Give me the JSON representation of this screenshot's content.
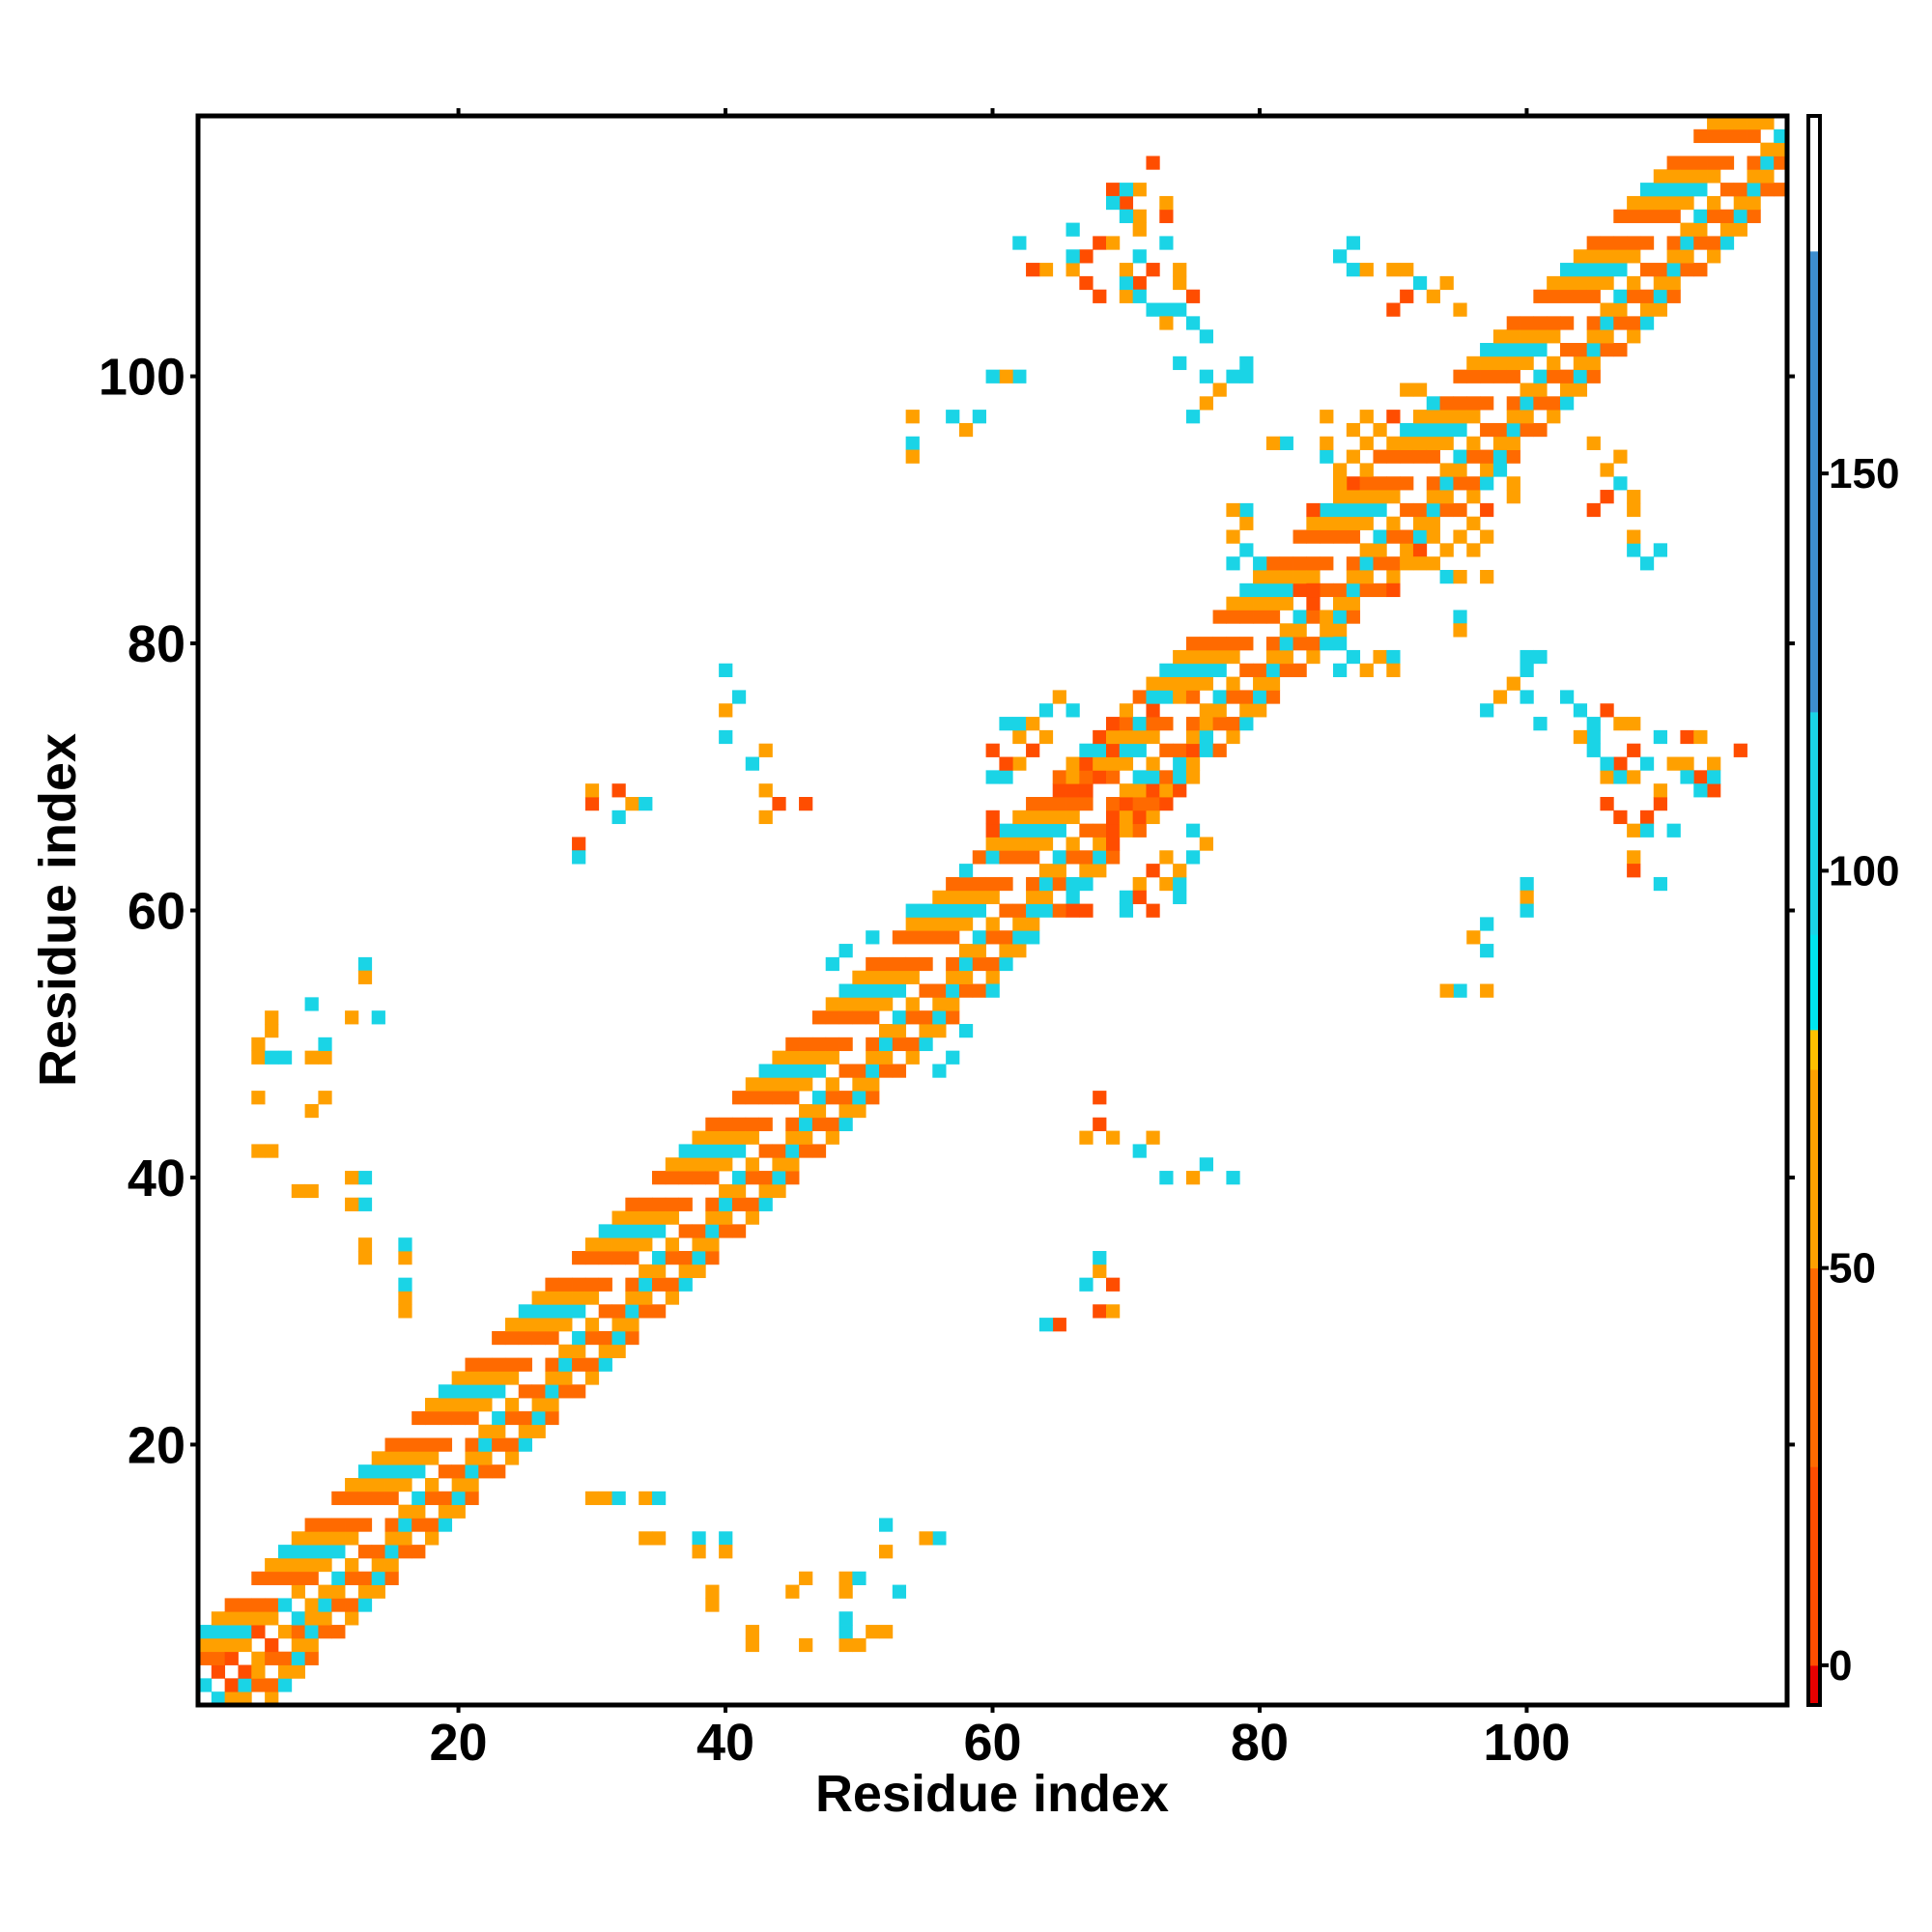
{
  "chart_data": {
    "type": "heatmap",
    "title": "",
    "xlabel": "Residue index",
    "ylabel": "Residue index",
    "x_range": [
      0.5,
      119.5
    ],
    "y_range": [
      0.5,
      119.5
    ],
    "x_ticks": [
      20,
      40,
      60,
      80,
      100
    ],
    "y_ticks": [
      20,
      40,
      60,
      80,
      100
    ],
    "colorbar": {
      "range": [
        -5,
        195
      ],
      "ticks": [
        0,
        50,
        100,
        150
      ],
      "bands": [
        {
          "from": -5,
          "to": 0,
          "color": "#e60000"
        },
        {
          "from": 0,
          "to": 25,
          "color": "#ff4d00"
        },
        {
          "from": 25,
          "to": 50,
          "color": "#ff6a00"
        },
        {
          "from": 50,
          "to": 75,
          "color": "#ffa000"
        },
        {
          "from": 75,
          "to": 80,
          "color": "#ffc000"
        },
        {
          "from": 80,
          "to": 92,
          "color": "#00e5ee"
        },
        {
          "from": 92,
          "to": 120,
          "color": "#1ad4e6"
        },
        {
          "from": 120,
          "to": 178,
          "color": "#3d8ecf"
        },
        {
          "from": 178,
          "to": 195,
          "color": "#ffffff"
        }
      ]
    },
    "diagonal_band": {
      "half_width": 5
    },
    "cells": [
      [
        2,
        1,
        95
      ],
      [
        3,
        2,
        10
      ],
      [
        4,
        3,
        5
      ],
      [
        5,
        4,
        60
      ],
      [
        6,
        5,
        5
      ],
      [
        7,
        6,
        60
      ],
      [
        8,
        7,
        95
      ],
      [
        9,
        8,
        60
      ],
      [
        30,
        16,
        60
      ],
      [
        31,
        16,
        60
      ],
      [
        32,
        16,
        100
      ],
      [
        34,
        16,
        60
      ],
      [
        35,
        16,
        100
      ],
      [
        34,
        13,
        60
      ],
      [
        35,
        13,
        60
      ],
      [
        38,
        13,
        100
      ],
      [
        38,
        12,
        60
      ],
      [
        40,
        13,
        100
      ],
      [
        40,
        12,
        60
      ],
      [
        39,
        9,
        60
      ],
      [
        39,
        8,
        60
      ],
      [
        42,
        5,
        60
      ],
      [
        46,
        5,
        60
      ],
      [
        49,
        5,
        60
      ],
      [
        50,
        5,
        60
      ],
      [
        51,
        6,
        60
      ],
      [
        56,
        13,
        95
      ],
      [
        53,
        9,
        95
      ],
      [
        52,
        6,
        60
      ],
      [
        49,
        6,
        95
      ],
      [
        49,
        9,
        60
      ],
      [
        42,
        6,
        60
      ],
      [
        45,
        9,
        60
      ],
      [
        46,
        10,
        60
      ],
      [
        49,
        7,
        95
      ],
      [
        49,
        10,
        60
      ],
      [
        50,
        10,
        95
      ],
      [
        52,
        12,
        60
      ],
      [
        52,
        14,
        95
      ],
      [
        55,
        13,
        60
      ],
      [
        56,
        13,
        95
      ],
      [
        65,
        69,
        5
      ],
      [
        66,
        69,
        5
      ],
      [
        67,
        69,
        5
      ],
      [
        68,
        70,
        10
      ],
      [
        66,
        70,
        60
      ],
      [
        67,
        71,
        5
      ],
      [
        69,
        72,
        5
      ],
      [
        70,
        72,
        100
      ],
      [
        68,
        73,
        5
      ],
      [
        69,
        74,
        5
      ],
      [
        71,
        74,
        100
      ],
      [
        72,
        75,
        5
      ],
      [
        73,
        76,
        100
      ],
      [
        70,
        75,
        60
      ],
      [
        72,
        76,
        100
      ],
      [
        74,
        76,
        60
      ],
      [
        73,
        62,
        60
      ],
      [
        74,
        62,
        100
      ],
      [
        74,
        61,
        100
      ],
      [
        72,
        63,
        5
      ],
      [
        74,
        63,
        60
      ],
      [
        75,
        64,
        100
      ],
      [
        76,
        65,
        60
      ],
      [
        75,
        66,
        100
      ],
      [
        73,
        64,
        60
      ],
      [
        66,
        60,
        5
      ],
      [
        67,
        60,
        5
      ],
      [
        66,
        61,
        100
      ],
      [
        66,
        62,
        100
      ],
      [
        70,
        60,
        100
      ],
      [
        70,
        61,
        100
      ],
      [
        71,
        62,
        60
      ],
      [
        71,
        61,
        5
      ],
      [
        72,
        60,
        5
      ],
      [
        64,
        60,
        100
      ],
      [
        63,
        58,
        100
      ],
      [
        60,
        54,
        100
      ],
      [
        58,
        51,
        95
      ],
      [
        57,
        49,
        95
      ],
      [
        56,
        48,
        95
      ],
      [
        43,
        67,
        60
      ],
      [
        43,
        69,
        60
      ],
      [
        44,
        68,
        5
      ],
      [
        46,
        68,
        5
      ],
      [
        43,
        72,
        60
      ],
      [
        42,
        71,
        100
      ],
      [
        40,
        73,
        100
      ],
      [
        40,
        75,
        60
      ],
      [
        40,
        78,
        100
      ],
      [
        41,
        76,
        100
      ],
      [
        30,
        68,
        5
      ],
      [
        29,
        65,
        5
      ],
      [
        32,
        69,
        5
      ],
      [
        30,
        69,
        60
      ],
      [
        33,
        68,
        60
      ],
      [
        34,
        68,
        100
      ],
      [
        29,
        64,
        100
      ],
      [
        32,
        67,
        100
      ],
      [
        62,
        100,
        100
      ],
      [
        61,
        100,
        60
      ],
      [
        59,
        97,
        100
      ],
      [
        57,
        97,
        100
      ],
      [
        54,
        95,
        100
      ],
      [
        54,
        94,
        60
      ],
      [
        54,
        97,
        60
      ],
      [
        58,
        96,
        60
      ],
      [
        60,
        100,
        100
      ],
      [
        72,
        116,
        5
      ],
      [
        69,
        114,
        5
      ],
      [
        70,
        113,
        5
      ],
      [
        71,
        111,
        60
      ],
      [
        73,
        112,
        5
      ],
      [
        73,
        113,
        60
      ],
      [
        68,
        110,
        5
      ],
      [
        69,
        110,
        60
      ],
      [
        67,
        109,
        5
      ],
      [
        66,
        108,
        60
      ],
      [
        67,
        107,
        5
      ],
      [
        70,
        106,
        60
      ],
      [
        71,
        107,
        5
      ],
      [
        72,
        105,
        100
      ],
      [
        73,
        105,
        100
      ],
      [
        76,
        103,
        100
      ],
      [
        75,
        104,
        100
      ],
      [
        75,
        106,
        5
      ],
      [
        74,
        107,
        60
      ],
      [
        66,
        109,
        95
      ],
      [
        66,
        111,
        100
      ],
      [
        64,
        108,
        60
      ],
      [
        63,
        108,
        5
      ],
      [
        62,
        110,
        100
      ],
      [
        86,
        109,
        100
      ],
      [
        87,
        108,
        100
      ],
      [
        88,
        108,
        60
      ],
      [
        87,
        110,
        100
      ],
      [
        90,
        108,
        60
      ],
      [
        91,
        108,
        60
      ],
      [
        92,
        107,
        100
      ],
      [
        94,
        107,
        60
      ],
      [
        90,
        105,
        5
      ],
      [
        91,
        106,
        5
      ],
      [
        93,
        106,
        60
      ],
      [
        95,
        105,
        60
      ],
      [
        84,
        90,
        5
      ],
      [
        86,
        91,
        60
      ],
      [
        86,
        92,
        60
      ],
      [
        87,
        92,
        5
      ],
      [
        88,
        93,
        60
      ],
      [
        87,
        94,
        60
      ],
      [
        88,
        95,
        5
      ],
      [
        89,
        96,
        60
      ],
      [
        88,
        97,
        60
      ],
      [
        90,
        97,
        5
      ],
      [
        91,
        99,
        60
      ],
      [
        92,
        99,
        60
      ],
      [
        93,
        98,
        100
      ],
      [
        96,
        87,
        60
      ],
      [
        95,
        88,
        60
      ],
      [
        93,
        86,
        60
      ],
      [
        94,
        85,
        100
      ],
      [
        95,
        85,
        60
      ],
      [
        97,
        85,
        60
      ],
      [
        95,
        82,
        100
      ],
      [
        95,
        81,
        60
      ],
      [
        100,
        79,
        100
      ],
      [
        101,
        79,
        100
      ],
      [
        100,
        78,
        100
      ],
      [
        99,
        77,
        60
      ],
      [
        98,
        76,
        60
      ],
      [
        97,
        75,
        100
      ],
      [
        100,
        76,
        100
      ],
      [
        101,
        74,
        100
      ],
      [
        104,
        75,
        100
      ],
      [
        104,
        73,
        60
      ],
      [
        105,
        74,
        100
      ],
      [
        106,
        71,
        100
      ],
      [
        107,
        70,
        100
      ],
      [
        106,
        68,
        5
      ],
      [
        107,
        67,
        5
      ],
      [
        108,
        70,
        60
      ],
      [
        108,
        72,
        5
      ],
      [
        108,
        74,
        60
      ],
      [
        110,
        73,
        100
      ],
      [
        109,
        71,
        100
      ],
      [
        112,
        71,
        60
      ],
      [
        112,
        70,
        100
      ],
      [
        113,
        69,
        100
      ],
      [
        114,
        71,
        60
      ],
      [
        114,
        70,
        100
      ],
      [
        83,
        84,
        5
      ],
      [
        84,
        84,
        5
      ],
      [
        85,
        82,
        60
      ],
      [
        86,
        80,
        100
      ],
      [
        87,
        79,
        100
      ],
      [
        88,
        78,
        60
      ],
      [
        86,
        78,
        100
      ],
      [
        89,
        79,
        60
      ],
      [
        90,
        79,
        100
      ],
      [
        90,
        78,
        60
      ]
    ]
  }
}
